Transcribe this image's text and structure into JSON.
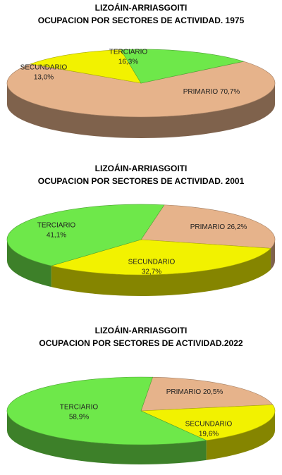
{
  "chart_data": [
    {
      "type": "pie",
      "title": "LIZOÁIN-ARRIASGOITI",
      "subtitle": "OCUPACION POR SECTORES DE ACTIVIDAD. 1975",
      "categories": [
        "PRIMARIO",
        "SECUNDARIO",
        "TERCIARIO"
      ],
      "values": [
        70.7,
        13.0,
        16.3
      ],
      "value_labels": [
        "70,7%",
        "13,0%",
        "16,3%"
      ],
      "colors": [
        "#e6b38b",
        "#f2f200",
        "#6ee84a"
      ]
    },
    {
      "type": "pie",
      "title": "LIZOÁIN-ARRIASGOITI",
      "subtitle": "OCUPACION POR SECTORES DE ACTIVIDAD. 2001",
      "categories": [
        "PRIMARIO",
        "SECUNDARIO",
        "TERCIARIO"
      ],
      "values": [
        26.2,
        32.7,
        41.1
      ],
      "value_labels": [
        "26,2%",
        "32,7%",
        "41,1%"
      ],
      "colors": [
        "#e6b38b",
        "#f2f200",
        "#6ee84a"
      ]
    },
    {
      "type": "pie",
      "title": "LIZOÁIN-ARRIASGOITI",
      "subtitle": "OCUPACION POR SECTORES DE ACTIVIDAD.2022",
      "categories": [
        "PRIMARIO",
        "SECUNDARIO",
        "TERCIARIO"
      ],
      "values": [
        20.5,
        19.6,
        58.9
      ],
      "value_labels": [
        "20,5%",
        "19,6%",
        "58,9%"
      ],
      "colors": [
        "#e6b38b",
        "#f2f200",
        "#6ee84a"
      ]
    }
  ]
}
